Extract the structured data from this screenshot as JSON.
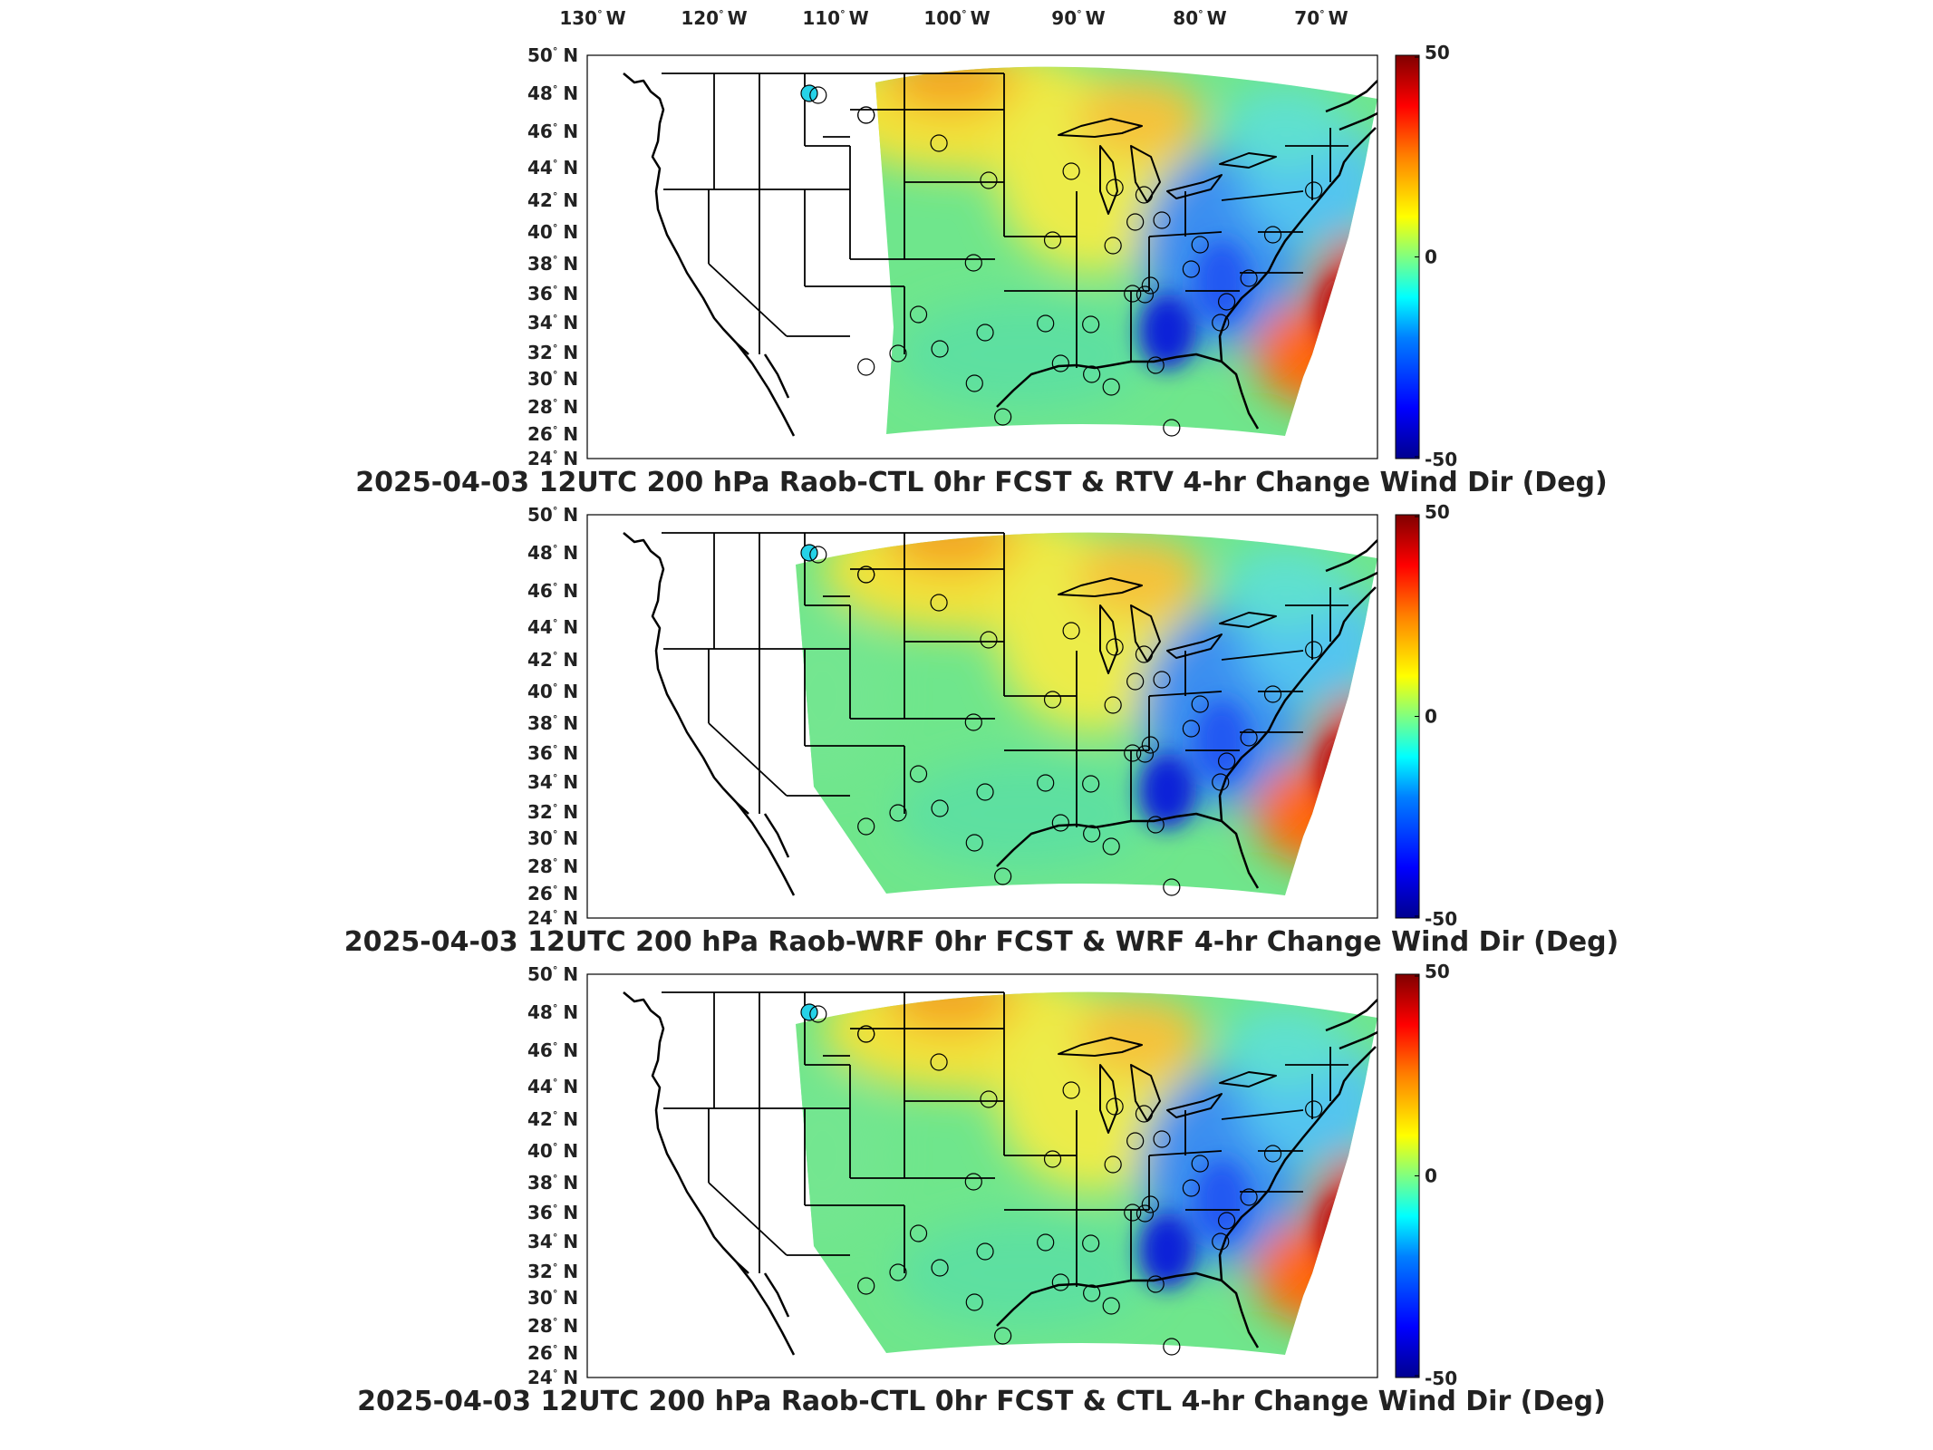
{
  "longitude_labels": [
    {
      "deg": "130",
      "hemi": "W"
    },
    {
      "deg": "120",
      "hemi": "W"
    },
    {
      "deg": "110",
      "hemi": "W"
    },
    {
      "deg": "100",
      "hemi": "W"
    },
    {
      "deg": "90",
      "hemi": "W"
    },
    {
      "deg": "80",
      "hemi": "W"
    },
    {
      "deg": "70",
      "hemi": "W"
    }
  ],
  "latitude_labels": [
    {
      "deg": "50",
      "hemi": "N"
    },
    {
      "deg": "48",
      "hemi": "N"
    },
    {
      "deg": "46",
      "hemi": "N"
    },
    {
      "deg": "44",
      "hemi": "N"
    },
    {
      "deg": "42",
      "hemi": "N"
    },
    {
      "deg": "40",
      "hemi": "N"
    },
    {
      "deg": "38",
      "hemi": "N"
    },
    {
      "deg": "36",
      "hemi": "N"
    },
    {
      "deg": "34",
      "hemi": "N"
    },
    {
      "deg": "32",
      "hemi": "N"
    },
    {
      "deg": "30",
      "hemi": "N"
    },
    {
      "deg": "28",
      "hemi": "N"
    },
    {
      "deg": "26",
      "hemi": "N"
    },
    {
      "deg": "24",
      "hemi": "N"
    }
  ],
  "colorbar": {
    "min": -50,
    "max": 50,
    "ticks": [
      "50",
      "0",
      "-50"
    ],
    "colormap": [
      "#00008f",
      "#0000ff",
      "#0080ff",
      "#00ffff",
      "#80ff80",
      "#ffff00",
      "#ff8000",
      "#ff0000",
      "#800000"
    ]
  },
  "panels": [
    {
      "title": "2025-04-03 12UTC 200 hPa Raob-CTL 0hr FCST & RTV 4-hr Change Wind Dir (Deg)",
      "field_coverage": "east"
    },
    {
      "title": "2025-04-03 12UTC 200 hPa Raob-WRF 0hr FCST & WRF 4-hr Change Wind Dir (Deg)",
      "field_coverage": "full"
    },
    {
      "title": "2025-04-03 12UTC 200 hPa Raob-CTL 0hr FCST & CTL 4-hr Change Wind Dir (Deg)",
      "field_coverage": "full"
    }
  ]
}
